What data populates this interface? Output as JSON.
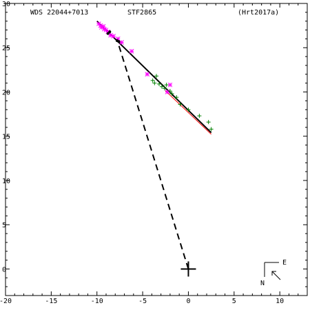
{
  "header": {
    "left": "WDS 22044+7013",
    "center": "STF2865",
    "right": "(Hrt2017a)"
  },
  "compass": {
    "east": "E",
    "north": "N"
  },
  "colors": {
    "frame": "#000000",
    "fit": "#000000",
    "fit_alt": "#ff0000",
    "magenta": "#ff00ff",
    "green": "#008000",
    "dashed": "#000000"
  },
  "chart_data": {
    "type": "scatter",
    "xlim": [
      -20,
      13
    ],
    "ylim": [
      -3,
      30
    ],
    "x_reversed": true,
    "xticks": [
      -20,
      -15,
      -10,
      -5,
      0,
      5,
      10
    ],
    "yticks": [
      0,
      5,
      10,
      15,
      20,
      25,
      30
    ],
    "xtick_labels": [
      "-20",
      "-15",
      "-10",
      "-5",
      "0",
      "5",
      "10"
    ],
    "ytick_labels": [
      "0",
      "5",
      "10",
      "15",
      "20",
      "25",
      "30"
    ],
    "primary": [
      0,
      0
    ],
    "fit_line": [
      [
        -10,
        28
      ],
      [
        2.5,
        15.4
      ]
    ],
    "fit_line_alt": [
      [
        -2.5,
        20.2
      ],
      [
        2.5,
        15.3
      ]
    ],
    "dashed_line": [
      [
        0,
        0
      ],
      [
        -7.8,
        25.9
      ]
    ],
    "series": [
      {
        "marker": "asterisk",
        "color": "#ff00ff",
        "points": [
          [
            -9.8,
            27.7
          ],
          [
            -9.6,
            27.5
          ],
          [
            -9.5,
            27.3
          ],
          [
            -9.3,
            27.4
          ],
          [
            -9.2,
            27.1
          ],
          [
            -9.0,
            27.0
          ],
          [
            -8.8,
            26.8
          ],
          [
            -8.5,
            26.4
          ],
          [
            -8.2,
            26.3
          ],
          [
            -7.7,
            26.0
          ],
          [
            -7.3,
            25.6
          ],
          [
            -6.2,
            24.6
          ],
          [
            -4.5,
            22.0
          ],
          [
            -2.0,
            20.8
          ],
          [
            -2.3,
            20.0
          ]
        ]
      },
      {
        "marker": "plus",
        "color": "#008000",
        "points": [
          [
            -3.7,
            21.0
          ],
          [
            -3.9,
            21.3
          ],
          [
            -3.5,
            21.8
          ],
          [
            -3.2,
            20.9
          ],
          [
            -2.9,
            20.6
          ],
          [
            -2.6,
            20.4
          ],
          [
            -2.4,
            20.8
          ],
          [
            -2.0,
            20.1
          ],
          [
            -1.8,
            19.8
          ],
          [
            -1.3,
            19.4
          ],
          [
            -0.9,
            18.6
          ],
          [
            0.0,
            18.0
          ],
          [
            1.2,
            17.3
          ],
          [
            2.2,
            16.6
          ],
          [
            2.5,
            15.8
          ]
        ]
      },
      {
        "marker": "dot",
        "color": "#000000",
        "points": [
          [
            -8.8,
            26.6
          ],
          [
            -8.6,
            26.8
          ],
          [
            -7.8,
            25.8
          ],
          [
            -7.6,
            25.7
          ]
        ]
      }
    ]
  }
}
